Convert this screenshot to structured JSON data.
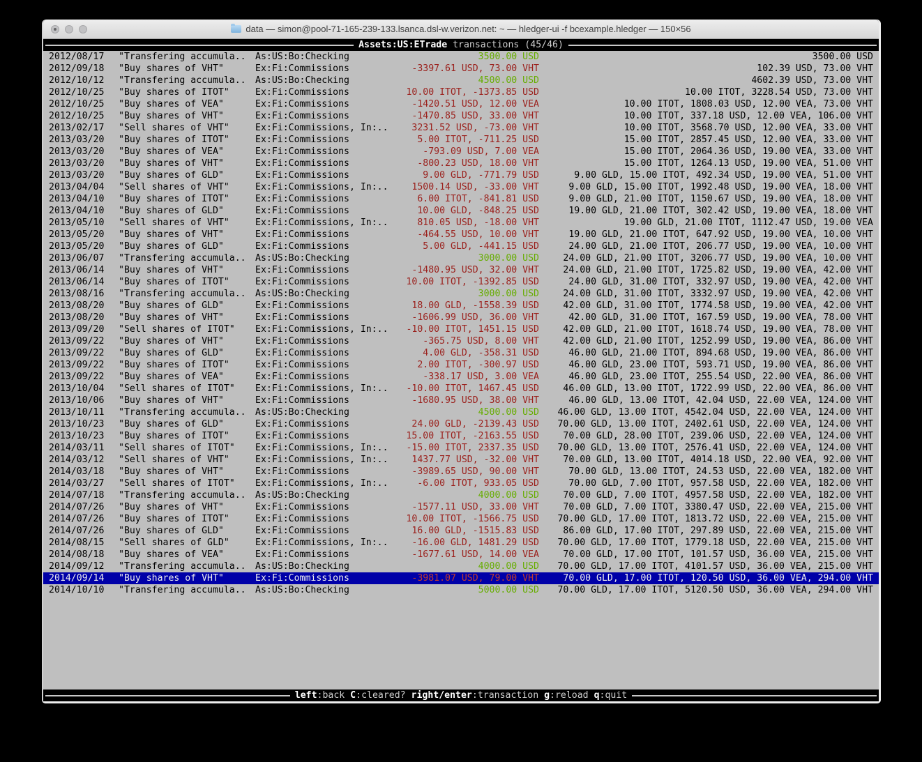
{
  "window": {
    "title": "data — simon@pool-71-165-239-133.lsanca.dsl-w.verizon.net: ~ — hledger-ui -f bcexample.hledger — 150×56",
    "traffic_lights": [
      "close",
      "minimize",
      "zoom"
    ]
  },
  "header": {
    "account": "Assets:US:ETrade",
    "suffix": " transactions (45/46)"
  },
  "footer": {
    "hints": [
      {
        "key": "left",
        "desc": ":back"
      },
      {
        "key": "C",
        "desc": ":cleared?"
      },
      {
        "key": "right/enter",
        "desc": ":transaction"
      },
      {
        "key": "g",
        "desc": ":reload"
      },
      {
        "key": "q",
        "desc": ":quit"
      }
    ]
  },
  "colors": {
    "terminal_background": "#bfbfbf",
    "bar_background": "#000000",
    "amount_positive_green": "#66ad00",
    "amount_negative_red": "#9b211d",
    "selected_row_background": "#0000a8",
    "selected_amount_red": "#c23b2e",
    "row_text": "#000000"
  },
  "register": {
    "rows": [
      {
        "date": "2012/08/17",
        "description": "\"Transfering accumula..",
        "account": "As:US:Bo:Checking",
        "amount": "3500.00 USD",
        "amount_color": "green",
        "balance": "3500.00 USD",
        "selected": false
      },
      {
        "date": "2012/09/18",
        "description": "\"Buy shares of VHT\"",
        "account": "Ex:Fi:Commissions",
        "amount": "-3397.61 USD, 73.00 VHT",
        "amount_color": "red",
        "balance": "102.39 USD, 73.00 VHT",
        "selected": false
      },
      {
        "date": "2012/10/12",
        "description": "\"Transfering accumula..",
        "account": "As:US:Bo:Checking",
        "amount": "4500.00 USD",
        "amount_color": "green",
        "balance": "4602.39 USD, 73.00 VHT",
        "selected": false
      },
      {
        "date": "2012/10/25",
        "description": "\"Buy shares of ITOT\"",
        "account": "Ex:Fi:Commissions",
        "amount": "10.00 ITOT, -1373.85 USD",
        "amount_color": "red",
        "balance": "10.00 ITOT, 3228.54 USD, 73.00 VHT",
        "selected": false
      },
      {
        "date": "2012/10/25",
        "description": "\"Buy shares of VEA\"",
        "account": "Ex:Fi:Commissions",
        "amount": "-1420.51 USD, 12.00 VEA",
        "amount_color": "red",
        "balance": "10.00 ITOT, 1808.03 USD, 12.00 VEA, 73.00 VHT",
        "selected": false
      },
      {
        "date": "2012/10/25",
        "description": "\"Buy shares of VHT\"",
        "account": "Ex:Fi:Commissions",
        "amount": "-1470.85 USD, 33.00 VHT",
        "amount_color": "red",
        "balance": "10.00 ITOT, 337.18 USD, 12.00 VEA, 106.00 VHT",
        "selected": false
      },
      {
        "date": "2013/02/17",
        "description": "\"Sell shares of VHT\"",
        "account": "Ex:Fi:Commissions, In:..",
        "amount": "3231.52 USD, -73.00 VHT",
        "amount_color": "red",
        "balance": "10.00 ITOT, 3568.70 USD, 12.00 VEA, 33.00 VHT",
        "selected": false
      },
      {
        "date": "2013/03/20",
        "description": "\"Buy shares of ITOT\"",
        "account": "Ex:Fi:Commissions",
        "amount": "5.00 ITOT, -711.25 USD",
        "amount_color": "red",
        "balance": "15.00 ITOT, 2857.45 USD, 12.00 VEA, 33.00 VHT",
        "selected": false
      },
      {
        "date": "2013/03/20",
        "description": "\"Buy shares of VEA\"",
        "account": "Ex:Fi:Commissions",
        "amount": "-793.09 USD, 7.00 VEA",
        "amount_color": "red",
        "balance": "15.00 ITOT, 2064.36 USD, 19.00 VEA, 33.00 VHT",
        "selected": false
      },
      {
        "date": "2013/03/20",
        "description": "\"Buy shares of VHT\"",
        "account": "Ex:Fi:Commissions",
        "amount": "-800.23 USD, 18.00 VHT",
        "amount_color": "red",
        "balance": "15.00 ITOT, 1264.13 USD, 19.00 VEA, 51.00 VHT",
        "selected": false
      },
      {
        "date": "2013/03/20",
        "description": "\"Buy shares of GLD\"",
        "account": "Ex:Fi:Commissions",
        "amount": "9.00 GLD, -771.79 USD",
        "amount_color": "red",
        "balance": "9.00 GLD, 15.00 ITOT, 492.34 USD, 19.00 VEA, 51.00 VHT",
        "selected": false
      },
      {
        "date": "2013/04/04",
        "description": "\"Sell shares of VHT\"",
        "account": "Ex:Fi:Commissions, In:..",
        "amount": "1500.14 USD, -33.00 VHT",
        "amount_color": "red",
        "balance": "9.00 GLD, 15.00 ITOT, 1992.48 USD, 19.00 VEA, 18.00 VHT",
        "selected": false
      },
      {
        "date": "2013/04/10",
        "description": "\"Buy shares of ITOT\"",
        "account": "Ex:Fi:Commissions",
        "amount": "6.00 ITOT, -841.81 USD",
        "amount_color": "red",
        "balance": "9.00 GLD, 21.00 ITOT, 1150.67 USD, 19.00 VEA, 18.00 VHT",
        "selected": false
      },
      {
        "date": "2013/04/10",
        "description": "\"Buy shares of GLD\"",
        "account": "Ex:Fi:Commissions",
        "amount": "10.00 GLD, -848.25 USD",
        "amount_color": "red",
        "balance": "19.00 GLD, 21.00 ITOT, 302.42 USD, 19.00 VEA, 18.00 VHT",
        "selected": false
      },
      {
        "date": "2013/05/10",
        "description": "\"Sell shares of VHT\"",
        "account": "Ex:Fi:Commissions, In:..",
        "amount": "810.05 USD, -18.00 VHT",
        "amount_color": "red",
        "balance": "19.00 GLD, 21.00 ITOT, 1112.47 USD, 19.00 VEA",
        "selected": false
      },
      {
        "date": "2013/05/20",
        "description": "\"Buy shares of VHT\"",
        "account": "Ex:Fi:Commissions",
        "amount": "-464.55 USD, 10.00 VHT",
        "amount_color": "red",
        "balance": "19.00 GLD, 21.00 ITOT, 647.92 USD, 19.00 VEA, 10.00 VHT",
        "selected": false
      },
      {
        "date": "2013/05/20",
        "description": "\"Buy shares of GLD\"",
        "account": "Ex:Fi:Commissions",
        "amount": "5.00 GLD, -441.15 USD",
        "amount_color": "red",
        "balance": "24.00 GLD, 21.00 ITOT, 206.77 USD, 19.00 VEA, 10.00 VHT",
        "selected": false
      },
      {
        "date": "2013/06/07",
        "description": "\"Transfering accumula..",
        "account": "As:US:Bo:Checking",
        "amount": "3000.00 USD",
        "amount_color": "green",
        "balance": "24.00 GLD, 21.00 ITOT, 3206.77 USD, 19.00 VEA, 10.00 VHT",
        "selected": false
      },
      {
        "date": "2013/06/14",
        "description": "\"Buy shares of VHT\"",
        "account": "Ex:Fi:Commissions",
        "amount": "-1480.95 USD, 32.00 VHT",
        "amount_color": "red",
        "balance": "24.00 GLD, 21.00 ITOT, 1725.82 USD, 19.00 VEA, 42.00 VHT",
        "selected": false
      },
      {
        "date": "2013/06/14",
        "description": "\"Buy shares of ITOT\"",
        "account": "Ex:Fi:Commissions",
        "amount": "10.00 ITOT, -1392.85 USD",
        "amount_color": "red",
        "balance": "24.00 GLD, 31.00 ITOT, 332.97 USD, 19.00 VEA, 42.00 VHT",
        "selected": false
      },
      {
        "date": "2013/08/16",
        "description": "\"Transfering accumula..",
        "account": "As:US:Bo:Checking",
        "amount": "3000.00 USD",
        "amount_color": "green",
        "balance": "24.00 GLD, 31.00 ITOT, 3332.97 USD, 19.00 VEA, 42.00 VHT",
        "selected": false
      },
      {
        "date": "2013/08/20",
        "description": "\"Buy shares of GLD\"",
        "account": "Ex:Fi:Commissions",
        "amount": "18.00 GLD, -1558.39 USD",
        "amount_color": "red",
        "balance": "42.00 GLD, 31.00 ITOT, 1774.58 USD, 19.00 VEA, 42.00 VHT",
        "selected": false
      },
      {
        "date": "2013/08/20",
        "description": "\"Buy shares of VHT\"",
        "account": "Ex:Fi:Commissions",
        "amount": "-1606.99 USD, 36.00 VHT",
        "amount_color": "red",
        "balance": "42.00 GLD, 31.00 ITOT, 167.59 USD, 19.00 VEA, 78.00 VHT",
        "selected": false
      },
      {
        "date": "2013/09/20",
        "description": "\"Sell shares of ITOT\"",
        "account": "Ex:Fi:Commissions, In:..",
        "amount": "-10.00 ITOT, 1451.15 USD",
        "amount_color": "red",
        "balance": "42.00 GLD, 21.00 ITOT, 1618.74 USD, 19.00 VEA, 78.00 VHT",
        "selected": false
      },
      {
        "date": "2013/09/22",
        "description": "\"Buy shares of VHT\"",
        "account": "Ex:Fi:Commissions",
        "amount": "-365.75 USD, 8.00 VHT",
        "amount_color": "red",
        "balance": "42.00 GLD, 21.00 ITOT, 1252.99 USD, 19.00 VEA, 86.00 VHT",
        "selected": false
      },
      {
        "date": "2013/09/22",
        "description": "\"Buy shares of GLD\"",
        "account": "Ex:Fi:Commissions",
        "amount": "4.00 GLD, -358.31 USD",
        "amount_color": "red",
        "balance": "46.00 GLD, 21.00 ITOT, 894.68 USD, 19.00 VEA, 86.00 VHT",
        "selected": false
      },
      {
        "date": "2013/09/22",
        "description": "\"Buy shares of ITOT\"",
        "account": "Ex:Fi:Commissions",
        "amount": "2.00 ITOT, -300.97 USD",
        "amount_color": "red",
        "balance": "46.00 GLD, 23.00 ITOT, 593.71 USD, 19.00 VEA, 86.00 VHT",
        "selected": false
      },
      {
        "date": "2013/09/22",
        "description": "\"Buy shares of VEA\"",
        "account": "Ex:Fi:Commissions",
        "amount": "-338.17 USD, 3.00 VEA",
        "amount_color": "red",
        "balance": "46.00 GLD, 23.00 ITOT, 255.54 USD, 22.00 VEA, 86.00 VHT",
        "selected": false
      },
      {
        "date": "2013/10/04",
        "description": "\"Sell shares of ITOT\"",
        "account": "Ex:Fi:Commissions, In:..",
        "amount": "-10.00 ITOT, 1467.45 USD",
        "amount_color": "red",
        "balance": "46.00 GLD, 13.00 ITOT, 1722.99 USD, 22.00 VEA, 86.00 VHT",
        "selected": false
      },
      {
        "date": "2013/10/06",
        "description": "\"Buy shares of VHT\"",
        "account": "Ex:Fi:Commissions",
        "amount": "-1680.95 USD, 38.00 VHT",
        "amount_color": "red",
        "balance": "46.00 GLD, 13.00 ITOT, 42.04 USD, 22.00 VEA, 124.00 VHT",
        "selected": false
      },
      {
        "date": "2013/10/11",
        "description": "\"Transfering accumula..",
        "account": "As:US:Bo:Checking",
        "amount": "4500.00 USD",
        "amount_color": "green",
        "balance": "46.00 GLD, 13.00 ITOT, 4542.04 USD, 22.00 VEA, 124.00 VHT",
        "selected": false
      },
      {
        "date": "2013/10/23",
        "description": "\"Buy shares of GLD\"",
        "account": "Ex:Fi:Commissions",
        "amount": "24.00 GLD, -2139.43 USD",
        "amount_color": "red",
        "balance": "70.00 GLD, 13.00 ITOT, 2402.61 USD, 22.00 VEA, 124.00 VHT",
        "selected": false
      },
      {
        "date": "2013/10/23",
        "description": "\"Buy shares of ITOT\"",
        "account": "Ex:Fi:Commissions",
        "amount": "15.00 ITOT, -2163.55 USD",
        "amount_color": "red",
        "balance": "70.00 GLD, 28.00 ITOT, 239.06 USD, 22.00 VEA, 124.00 VHT",
        "selected": false
      },
      {
        "date": "2014/03/11",
        "description": "\"Sell shares of ITOT\"",
        "account": "Ex:Fi:Commissions, In:..",
        "amount": "-15.00 ITOT, 2337.35 USD",
        "amount_color": "red",
        "balance": "70.00 GLD, 13.00 ITOT, 2576.41 USD, 22.00 VEA, 124.00 VHT",
        "selected": false
      },
      {
        "date": "2014/03/12",
        "description": "\"Sell shares of VHT\"",
        "account": "Ex:Fi:Commissions, In:..",
        "amount": "1437.77 USD, -32.00 VHT",
        "amount_color": "red",
        "balance": "70.00 GLD, 13.00 ITOT, 4014.18 USD, 22.00 VEA, 92.00 VHT",
        "selected": false
      },
      {
        "date": "2014/03/18",
        "description": "\"Buy shares of VHT\"",
        "account": "Ex:Fi:Commissions",
        "amount": "-3989.65 USD, 90.00 VHT",
        "amount_color": "red",
        "balance": "70.00 GLD, 13.00 ITOT, 24.53 USD, 22.00 VEA, 182.00 VHT",
        "selected": false
      },
      {
        "date": "2014/03/27",
        "description": "\"Sell shares of ITOT\"",
        "account": "Ex:Fi:Commissions, In:..",
        "amount": "-6.00 ITOT, 933.05 USD",
        "amount_color": "red",
        "balance": "70.00 GLD, 7.00 ITOT, 957.58 USD, 22.00 VEA, 182.00 VHT",
        "selected": false
      },
      {
        "date": "2014/07/18",
        "description": "\"Transfering accumula..",
        "account": "As:US:Bo:Checking",
        "amount": "4000.00 USD",
        "amount_color": "green",
        "balance": "70.00 GLD, 7.00 ITOT, 4957.58 USD, 22.00 VEA, 182.00 VHT",
        "selected": false
      },
      {
        "date": "2014/07/26",
        "description": "\"Buy shares of VHT\"",
        "account": "Ex:Fi:Commissions",
        "amount": "-1577.11 USD, 33.00 VHT",
        "amount_color": "red",
        "balance": "70.00 GLD, 7.00 ITOT, 3380.47 USD, 22.00 VEA, 215.00 VHT",
        "selected": false
      },
      {
        "date": "2014/07/26",
        "description": "\"Buy shares of ITOT\"",
        "account": "Ex:Fi:Commissions",
        "amount": "10.00 ITOT, -1566.75 USD",
        "amount_color": "red",
        "balance": "70.00 GLD, 17.00 ITOT, 1813.72 USD, 22.00 VEA, 215.00 VHT",
        "selected": false
      },
      {
        "date": "2014/07/26",
        "description": "\"Buy shares of GLD\"",
        "account": "Ex:Fi:Commissions",
        "amount": "16.00 GLD, -1515.83 USD",
        "amount_color": "red",
        "balance": "86.00 GLD, 17.00 ITOT, 297.89 USD, 22.00 VEA, 215.00 VHT",
        "selected": false
      },
      {
        "date": "2014/08/15",
        "description": "\"Sell shares of GLD\"",
        "account": "Ex:Fi:Commissions, In:..",
        "amount": "-16.00 GLD, 1481.29 USD",
        "amount_color": "red",
        "balance": "70.00 GLD, 17.00 ITOT, 1779.18 USD, 22.00 VEA, 215.00 VHT",
        "selected": false
      },
      {
        "date": "2014/08/18",
        "description": "\"Buy shares of VEA\"",
        "account": "Ex:Fi:Commissions",
        "amount": "-1677.61 USD, 14.00 VEA",
        "amount_color": "red",
        "balance": "70.00 GLD, 17.00 ITOT, 101.57 USD, 36.00 VEA, 215.00 VHT",
        "selected": false
      },
      {
        "date": "2014/09/12",
        "description": "\"Transfering accumula..",
        "account": "As:US:Bo:Checking",
        "amount": "4000.00 USD",
        "amount_color": "green",
        "balance": "70.00 GLD, 17.00 ITOT, 4101.57 USD, 36.00 VEA, 215.00 VHT",
        "selected": false
      },
      {
        "date": "2014/09/14",
        "description": "\"Buy shares of VHT\"",
        "account": "Ex:Fi:Commissions",
        "amount": "-3981.07 USD, 79.00 VHT",
        "amount_color": "red",
        "balance": "70.00 GLD, 17.00 ITOT, 120.50 USD, 36.00 VEA, 294.00 VHT",
        "selected": true
      },
      {
        "date": "2014/10/10",
        "description": "\"Transfering accumula..",
        "account": "As:US:Bo:Checking",
        "amount": "5000.00 USD",
        "amount_color": "green",
        "balance": "70.00 GLD, 17.00 ITOT, 5120.50 USD, 36.00 VEA, 294.00 VHT",
        "selected": false
      }
    ]
  }
}
